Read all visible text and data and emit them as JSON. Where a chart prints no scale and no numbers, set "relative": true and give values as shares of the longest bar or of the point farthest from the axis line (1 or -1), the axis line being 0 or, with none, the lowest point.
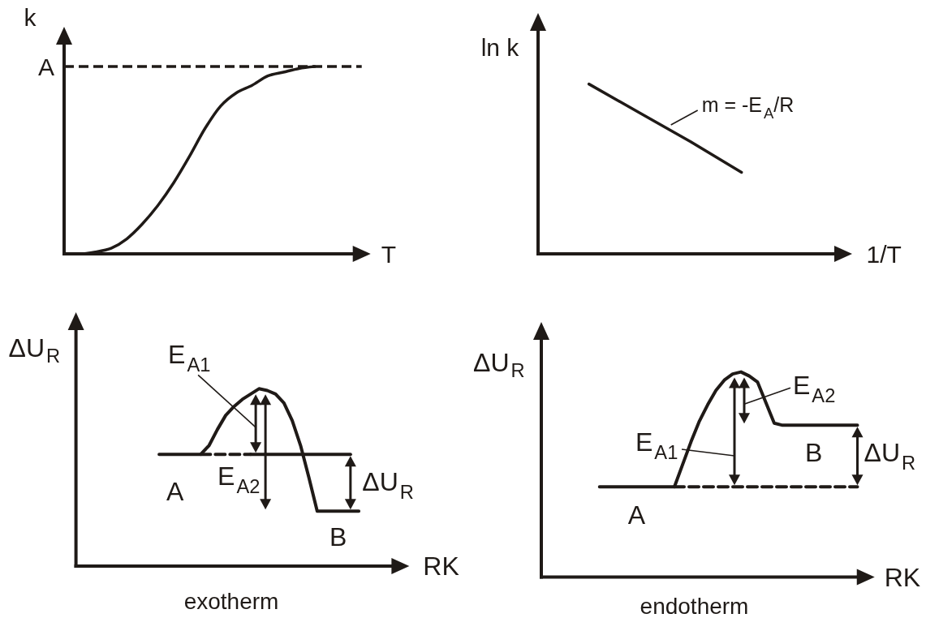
{
  "chart_data": [
    {
      "type": "line",
      "xlabel": "T",
      "ylabel": "k",
      "relative": true,
      "marker": "none",
      "categories": [
        null,
        null,
        null,
        null,
        null,
        null,
        null,
        null,
        null,
        null,
        null,
        null,
        null,
        null,
        null,
        null,
        null,
        null,
        null,
        null
      ],
      "series": [
        {
          "color": "#1f1a17",
          "values": [
            0,
            0,
            0.01,
            0.03,
            0.08,
            0.16,
            0.26,
            0.38,
            0.52,
            0.67,
            0.79,
            0.86,
            0.9,
            0.95,
            0.97,
            0.99,
            1,
            null,
            null,
            null
          ]
        }
      ],
      "ref_lines": [
        {
          "axis": "y",
          "value": 1,
          "label": "A",
          "color": "#1f1a17",
          "line_style": "dashed"
        }
      ]
    },
    {
      "type": "line",
      "xlabel": "1/T",
      "ylabel": "ln k",
      "relative": true,
      "marker": "none",
      "categories": [
        null,
        null,
        null,
        null,
        null,
        null,
        null
      ],
      "series": [
        {
          "color": "#1f1a17",
          "values": [
            null,
            1,
            0.83,
            0.66,
            0.48,
            null,
            null
          ]
        }
      ],
      "annotations": [
        "m = -E$_{A}$/R"
      ]
    },
    {
      "type": "line",
      "title": "exotherm",
      "xlabel": "RK",
      "ylabel": "ΔU$_{R}$",
      "relative": true,
      "marker": "none",
      "categories": [
        null,
        null,
        null,
        null,
        null,
        null,
        null,
        null,
        null,
        null,
        null,
        null,
        null,
        null,
        null,
        null,
        null,
        null,
        null,
        null,
        null,
        null,
        null,
        null,
        null,
        null,
        null,
        null,
        null,
        null,
        null,
        null,
        null,
        null,
        null,
        null,
        null,
        null,
        null,
        null
      ],
      "series": [
        {
          "color": "#1f1a17",
          "values": [
            null,
            null,
            null,
            null,
            null,
            null,
            null,
            null,
            null,
            null,
            0.63,
            0.63,
            0.63,
            0.63,
            0.63,
            0.63,
            0.68,
            0.77,
            0.85,
            0.9,
            0.94,
            0.97,
            1,
            0.99,
            0.97,
            0.92,
            0.82,
            0.68,
            0.5,
            0.31,
            0.31,
            0.31,
            0.31,
            0.31,
            0.31,
            null,
            null,
            null,
            null,
            null
          ]
        },
        {
          "color": "#1f1a17",
          "line_style": "dashed",
          "values": [
            null,
            null,
            null,
            null,
            null,
            null,
            null,
            null,
            null,
            null,
            null,
            null,
            null,
            null,
            null,
            0.63,
            0.63,
            0.63,
            0.63,
            0.63,
            0.63,
            0.63,
            null,
            null,
            null,
            null,
            null,
            null,
            null,
            null,
            null,
            null,
            null,
            null,
            null,
            null,
            null,
            null,
            null,
            null
          ]
        },
        {
          "color": "#1f1a17",
          "values": [
            null,
            null,
            null,
            null,
            null,
            null,
            null,
            null,
            null,
            null,
            null,
            null,
            null,
            null,
            null,
            null,
            null,
            null,
            null,
            null,
            null,
            0.63,
            0.63,
            0.63,
            0.63,
            0.63,
            0.63,
            0.63,
            0.63,
            0.63,
            0.63,
            0.63,
            0.63,
            0.63,
            null,
            null,
            null,
            null,
            null,
            null
          ]
        }
      ],
      "annotations": [
        "E$_{A1}$",
        "E$_{A2}$",
        "ΔU$_{R}$",
        "A",
        "B"
      ]
    },
    {
      "type": "line",
      "title": "endotherm",
      "xlabel": "RK",
      "ylabel": "ΔU$_{R}$",
      "relative": true,
      "marker": "none",
      "categories": [
        null,
        null,
        null,
        null,
        null,
        null,
        null,
        null,
        null,
        null,
        null,
        null,
        null,
        null,
        null,
        null,
        null,
        null,
        null,
        null,
        null,
        null,
        null,
        null,
        null,
        null,
        null,
        null,
        null,
        null,
        null,
        null,
        null,
        null,
        null,
        null,
        null,
        null,
        null,
        null
      ],
      "series": [
        {
          "color": "#1f1a17",
          "values": [
            null,
            null,
            null,
            null,
            null,
            null,
            null,
            0.44,
            0.44,
            0.44,
            0.44,
            0.44,
            0.44,
            0.44,
            0.44,
            0.44,
            0.44,
            0.55,
            0.66,
            0.76,
            0.84,
            0.91,
            0.96,
            0.99,
            1,
            0.98,
            0.95,
            0.85,
            0.75,
            0.74,
            0.74,
            0.74,
            0.74,
            0.74,
            0.74,
            0.74,
            0.74,
            0.74,
            0.74,
            null
          ]
        },
        {
          "color": "#1f1a17",
          "line_style": "dashed",
          "values": [
            null,
            null,
            null,
            null,
            null,
            null,
            null,
            null,
            null,
            null,
            null,
            null,
            null,
            null,
            null,
            null,
            0.44,
            0.44,
            0.44,
            0.44,
            0.44,
            0.44,
            0.44,
            0.44,
            0.44,
            0.44,
            0.44,
            0.44,
            0.44,
            0.44,
            0.44,
            0.44,
            0.44,
            0.44,
            0.44,
            0.44,
            0.44,
            0.44,
            0.44,
            null
          ]
        }
      ],
      "annotations": [
        "E$_{A1}$",
        "E$_{A2}$",
        "ΔU$_{R}$",
        "A",
        "B"
      ]
    }
  ]
}
